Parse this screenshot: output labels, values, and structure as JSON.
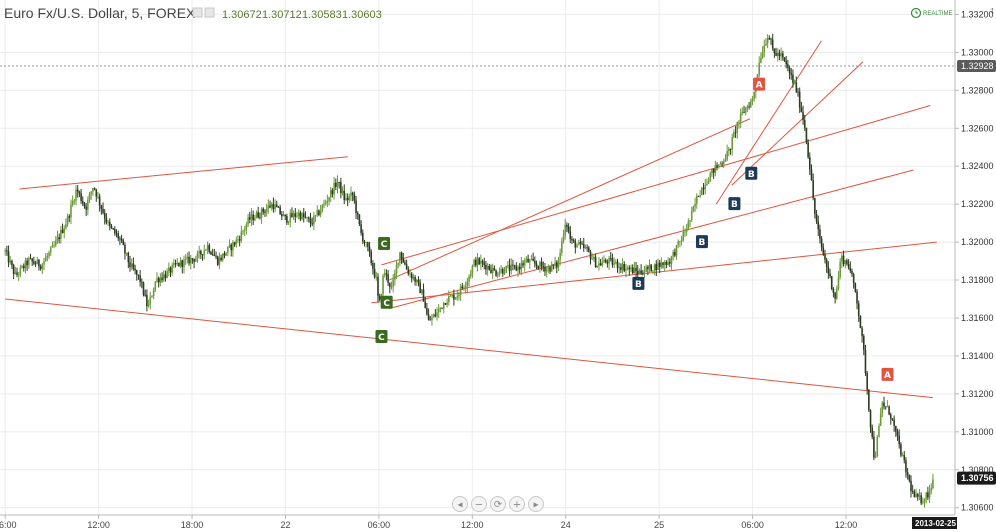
{
  "header": {
    "title": "Euro Fx/U.S. Dollar, 5, FOREX",
    "ohlc": [
      "1.30672",
      "1.30712",
      "1.30583",
      "1.30603"
    ],
    "realtime_label": "REALTIME"
  },
  "colors": {
    "candle_up": "#6b9a3a",
    "candle_down": "#2c3b20",
    "trendline": "#e0553f",
    "badge_a": "#e0553f",
    "badge_b": "#1e3a5a",
    "badge_c": "#3a6a1f",
    "last_price_bg": "#1a1a1a",
    "crosshair_price_bg": "#5a5a5a"
  },
  "navigation": [
    {
      "name": "scroll-left-button",
      "glyph": "◂"
    },
    {
      "name": "zoom-out-button",
      "glyph": "−"
    },
    {
      "name": "reset-button",
      "glyph": "⟳"
    },
    {
      "name": "zoom-in-button",
      "glyph": "+"
    },
    {
      "name": "scroll-right-button",
      "glyph": "▸"
    }
  ],
  "chart_data": {
    "type": "candlestick",
    "ylim": [
      1.305,
      1.3325
    ],
    "grid": true,
    "y_ticks": [
      "1.33200",
      "1.33000",
      "1.32800",
      "1.32600",
      "1.32400",
      "1.32200",
      "1.32000",
      "1.31800",
      "1.31600",
      "1.31400",
      "1.31200",
      "1.31000",
      "1.30800",
      "1.30600"
    ],
    "x_ticks": [
      {
        "label": "06:00",
        "t": 0
      },
      {
        "label": "12:00",
        "t": 72
      },
      {
        "label": "18:00",
        "t": 144
      },
      {
        "label": "22",
        "t": 216
      },
      {
        "label": "06:00",
        "t": 288
      },
      {
        "label": "12:00",
        "t": 360
      },
      {
        "label": "24",
        "t": 432
      },
      {
        "label": "25",
        "t": 504
      },
      {
        "label": "06:00",
        "t": 576
      },
      {
        "label": "12:00",
        "t": 648
      }
    ],
    "x_range": [
      0,
      715
    ],
    "date_label": "2013-02-25",
    "last_price": "1.30756",
    "crosshair_price": "1.32928",
    "crosshair_y": 1.32928,
    "price_path": [
      [
        0,
        1.3195
      ],
      [
        8,
        1.3182
      ],
      [
        18,
        1.319
      ],
      [
        28,
        1.3188
      ],
      [
        38,
        1.3198
      ],
      [
        48,
        1.3212
      ],
      [
        55,
        1.3228
      ],
      [
        62,
        1.3218
      ],
      [
        68,
        1.323
      ],
      [
        72,
        1.3222
      ],
      [
        80,
        1.3208
      ],
      [
        88,
        1.3202
      ],
      [
        96,
        1.3188
      ],
      [
        104,
        1.318
      ],
      [
        110,
        1.3165
      ],
      [
        116,
        1.318
      ],
      [
        124,
        1.3183
      ],
      [
        132,
        1.3188
      ],
      [
        140,
        1.319
      ],
      [
        148,
        1.3192
      ],
      [
        156,
        1.3198
      ],
      [
        164,
        1.319
      ],
      [
        172,
        1.3196
      ],
      [
        180,
        1.3202
      ],
      [
        188,
        1.3212
      ],
      [
        196,
        1.3215
      ],
      [
        206,
        1.322
      ],
      [
        216,
        1.3212
      ],
      [
        226,
        1.3215
      ],
      [
        236,
        1.321
      ],
      [
        246,
        1.322
      ],
      [
        256,
        1.3232
      ],
      [
        262,
        1.3222
      ],
      [
        268,
        1.3225
      ],
      [
        274,
        1.3205
      ],
      [
        280,
        1.3195
      ],
      [
        286,
        1.318
      ],
      [
        288,
        1.3165
      ],
      [
        292,
        1.3185
      ],
      [
        298,
        1.3175
      ],
      [
        304,
        1.3195
      ],
      [
        310,
        1.3185
      ],
      [
        316,
        1.318
      ],
      [
        322,
        1.3172
      ],
      [
        326,
        1.3158
      ],
      [
        332,
        1.3162
      ],
      [
        340,
        1.317
      ],
      [
        348,
        1.3172
      ],
      [
        356,
        1.318
      ],
      [
        362,
        1.319
      ],
      [
        370,
        1.3188
      ],
      [
        378,
        1.3184
      ],
      [
        386,
        1.3186
      ],
      [
        394,
        1.3186
      ],
      [
        402,
        1.319
      ],
      [
        410,
        1.3188
      ],
      [
        418,
        1.3186
      ],
      [
        426,
        1.3188
      ],
      [
        432,
        1.3212
      ],
      [
        436,
        1.32
      ],
      [
        442,
        1.3198
      ],
      [
        448,
        1.3196
      ],
      [
        456,
        1.3188
      ],
      [
        464,
        1.319
      ],
      [
        472,
        1.3188
      ],
      [
        480,
        1.3186
      ],
      [
        488,
        1.3184
      ],
      [
        496,
        1.3186
      ],
      [
        504,
        1.3188
      ],
      [
        512,
        1.319
      ],
      [
        520,
        1.32
      ],
      [
        528,
        1.3212
      ],
      [
        534,
        1.3225
      ],
      [
        540,
        1.3232
      ],
      [
        546,
        1.3238
      ],
      [
        552,
        1.3242
      ],
      [
        558,
        1.3248
      ],
      [
        564,
        1.3262
      ],
      [
        570,
        1.327
      ],
      [
        576,
        1.3275
      ],
      [
        582,
        1.3298
      ],
      [
        588,
        1.331
      ],
      [
        592,
        1.33
      ],
      [
        598,
        1.3298
      ],
      [
        604,
        1.329
      ],
      [
        610,
        1.328
      ],
      [
        616,
        1.3262
      ],
      [
        620,
        1.324
      ],
      [
        624,
        1.3215
      ],
      [
        628,
        1.32
      ],
      [
        632,
        1.319
      ],
      [
        636,
        1.318
      ],
      [
        640,
        1.317
      ],
      [
        644,
        1.3192
      ],
      [
        650,
        1.3188
      ],
      [
        656,
        1.3172
      ],
      [
        662,
        1.314
      ],
      [
        666,
        1.311
      ],
      [
        670,
        1.3085
      ],
      [
        676,
        1.3115
      ],
      [
        682,
        1.311
      ],
      [
        688,
        1.3095
      ],
      [
        694,
        1.308
      ],
      [
        700,
        1.3066
      ],
      [
        706,
        1.3064
      ],
      [
        712,
        1.3068
      ],
      [
        715,
        1.3075
      ]
    ],
    "trendlines": [
      [
        [
          11,
          1.3228
        ],
        [
          264,
          1.3245
        ]
      ],
      [
        [
          0,
          1.317
        ],
        [
          715,
          1.3118
        ]
      ],
      [
        [
          296,
          1.318
        ],
        [
          574,
          1.3265
        ]
      ],
      [
        [
          290,
          1.3188
        ],
        [
          713,
          1.3272
        ]
      ],
      [
        [
          296,
          1.3165
        ],
        [
          700,
          1.3238
        ]
      ],
      [
        [
          282,
          1.3168
        ],
        [
          718,
          1.32
        ]
      ],
      [
        [
          548,
          1.322
        ],
        [
          629,
          1.3306
        ]
      ],
      [
        [
          560,
          1.323
        ],
        [
          661,
          1.3295
        ]
      ]
    ],
    "annotations": [
      {
        "label": "C",
        "kind": "c",
        "t": 292,
        "y": 1.3199
      },
      {
        "label": "C",
        "kind": "c",
        "t": 294,
        "y": 1.3168
      },
      {
        "label": "C",
        "kind": "c",
        "t": 290,
        "y": 1.315
      },
      {
        "label": "B",
        "kind": "b",
        "t": 488,
        "y": 1.3178
      },
      {
        "label": "B",
        "kind": "b",
        "t": 537,
        "y": 1.32
      },
      {
        "label": "B",
        "kind": "b",
        "t": 562,
        "y": 1.322
      },
      {
        "label": "B",
        "kind": "b",
        "t": 575,
        "y": 1.3236
      },
      {
        "label": "A",
        "kind": "a",
        "t": 581,
        "y": 1.3283
      },
      {
        "label": "A",
        "kind": "a",
        "t": 680,
        "y": 1.313
      }
    ]
  }
}
